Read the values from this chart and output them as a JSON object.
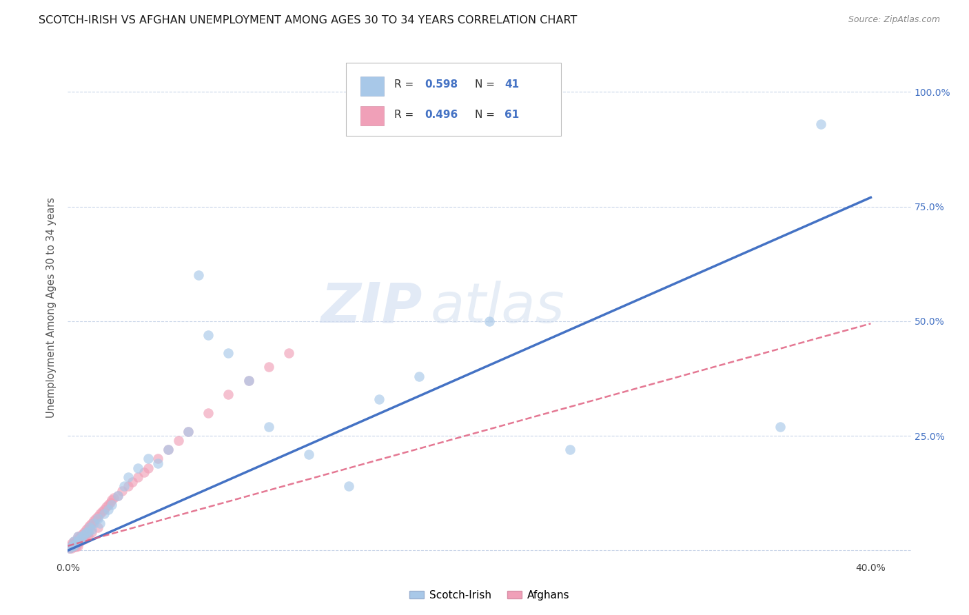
{
  "title": "SCOTCH-IRISH VS AFGHAN UNEMPLOYMENT AMONG AGES 30 TO 34 YEARS CORRELATION CHART",
  "source": "Source: ZipAtlas.com",
  "ylabel": "Unemployment Among Ages 30 to 34 years",
  "xlim": [
    0.0,
    0.42
  ],
  "ylim": [
    -0.02,
    1.08
  ],
  "x_tick_positions": [
    0.0,
    0.1,
    0.2,
    0.3,
    0.4
  ],
  "x_tick_labels": [
    "0.0%",
    "",
    "",
    "",
    "40.0%"
  ],
  "y_tick_positions": [
    0.0,
    0.25,
    0.5,
    0.75,
    1.0
  ],
  "y_tick_labels": [
    "",
    "25.0%",
    "50.0%",
    "75.0%",
    "100.0%"
  ],
  "watermark_zip": "ZIP",
  "watermark_atlas": "atlas",
  "legend_r1": "0.598",
  "legend_n1": "41",
  "legend_r2": "0.496",
  "legend_n2": "61",
  "scotch_irish_color": "#a8c8e8",
  "afghan_color": "#f0a0b8",
  "scotch_irish_line_color": "#4472c4",
  "afghan_line_color": "#e06080",
  "scotch_irish_label": "Scotch-Irish",
  "afghan_label": "Afghans",
  "background_color": "#ffffff",
  "grid_color": "#c8d4e8",
  "scotch_irish_x": [
    0.001,
    0.002,
    0.003,
    0.003,
    0.004,
    0.005,
    0.005,
    0.006,
    0.007,
    0.008,
    0.009,
    0.01,
    0.011,
    0.012,
    0.013,
    0.015,
    0.016,
    0.018,
    0.02,
    0.022,
    0.025,
    0.028,
    0.03,
    0.035,
    0.04,
    0.045,
    0.05,
    0.06,
    0.065,
    0.07,
    0.08,
    0.09,
    0.1,
    0.12,
    0.14,
    0.155,
    0.175,
    0.21,
    0.25,
    0.355,
    0.375
  ],
  "scotch_irish_y": [
    0.005,
    0.01,
    0.01,
    0.02,
    0.015,
    0.02,
    0.03,
    0.025,
    0.03,
    0.035,
    0.04,
    0.04,
    0.05,
    0.045,
    0.06,
    0.07,
    0.06,
    0.08,
    0.09,
    0.1,
    0.12,
    0.14,
    0.16,
    0.18,
    0.2,
    0.19,
    0.22,
    0.26,
    0.6,
    0.47,
    0.43,
    0.37,
    0.27,
    0.21,
    0.14,
    0.33,
    0.38,
    0.5,
    0.22,
    0.27,
    0.93
  ],
  "afghan_x": [
    0.001,
    0.001,
    0.002,
    0.002,
    0.003,
    0.003,
    0.004,
    0.004,
    0.005,
    0.005,
    0.005,
    0.006,
    0.006,
    0.007,
    0.007,
    0.008,
    0.008,
    0.009,
    0.009,
    0.01,
    0.01,
    0.011,
    0.012,
    0.013,
    0.014,
    0.015,
    0.016,
    0.017,
    0.018,
    0.019,
    0.02,
    0.021,
    0.022,
    0.023,
    0.025,
    0.027,
    0.03,
    0.032,
    0.035,
    0.038,
    0.04,
    0.045,
    0.05,
    0.055,
    0.06,
    0.07,
    0.08,
    0.09,
    0.1,
    0.11,
    0.001,
    0.002,
    0.003,
    0.004,
    0.005,
    0.003,
    0.006,
    0.008,
    0.01,
    0.012,
    0.015
  ],
  "afghan_y": [
    0.005,
    0.01,
    0.008,
    0.015,
    0.01,
    0.02,
    0.015,
    0.02,
    0.015,
    0.025,
    0.03,
    0.02,
    0.03,
    0.025,
    0.035,
    0.03,
    0.04,
    0.035,
    0.045,
    0.04,
    0.05,
    0.055,
    0.06,
    0.065,
    0.07,
    0.075,
    0.08,
    0.085,
    0.09,
    0.095,
    0.1,
    0.105,
    0.11,
    0.115,
    0.12,
    0.13,
    0.14,
    0.15,
    0.16,
    0.17,
    0.18,
    0.2,
    0.22,
    0.24,
    0.26,
    0.3,
    0.34,
    0.37,
    0.4,
    0.43,
    0.005,
    0.005,
    0.008,
    0.008,
    0.01,
    0.015,
    0.02,
    0.025,
    0.03,
    0.04,
    0.05
  ],
  "si_line_x": [
    0.0,
    0.4
  ],
  "si_line_y": [
    0.0,
    0.77
  ],
  "af_line_x": [
    0.0,
    0.4
  ],
  "af_line_y": [
    0.01,
    0.495
  ]
}
